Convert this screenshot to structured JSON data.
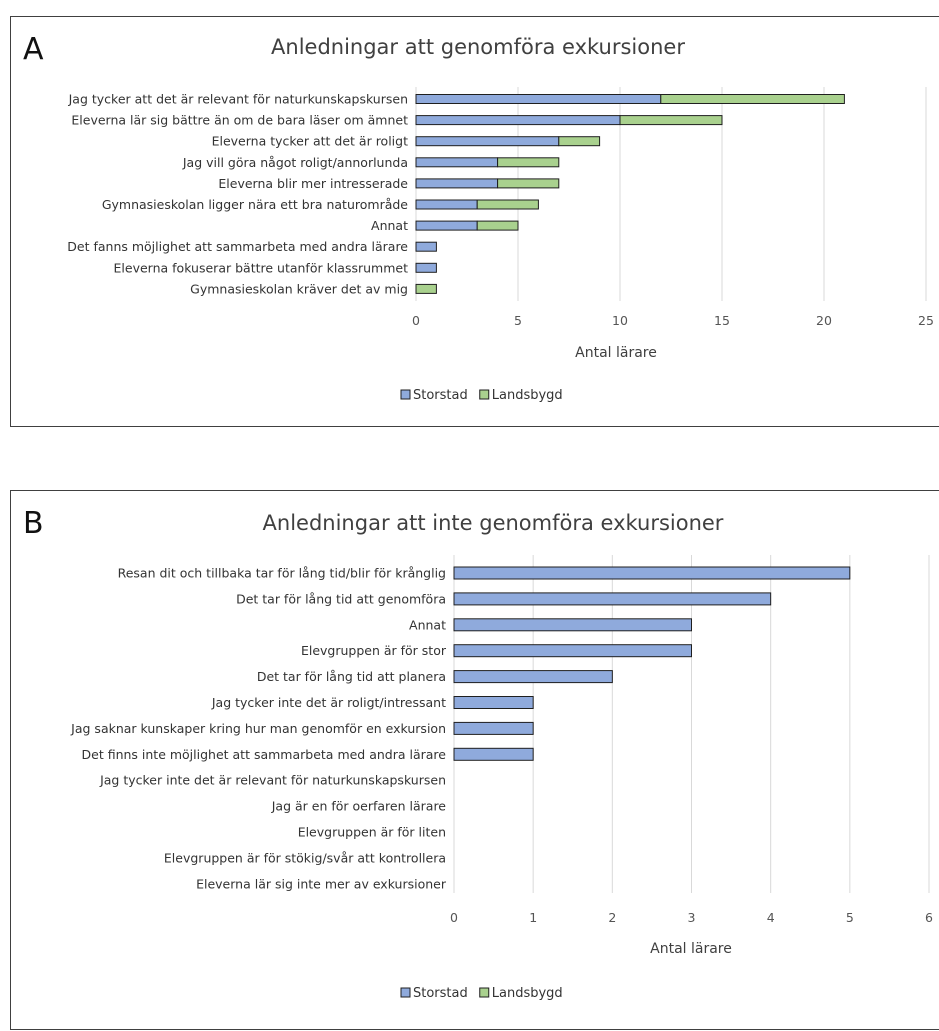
{
  "chart_data": [
    {
      "type": "bar",
      "orientation": "horizontal",
      "stacked": true,
      "panel_letter": "A",
      "title": "Anledningar att genomföra exkursioner",
      "xlabel": "Antal lärare",
      "ylabel": "",
      "xlim": [
        0,
        25
      ],
      "xticks": [
        0,
        5,
        10,
        15,
        20,
        25
      ],
      "grid": true,
      "legend_position": "bottom",
      "categories": [
        "Jag tycker att det är relevant för naturkunskapskursen",
        "Eleverna lär sig bättre än om de bara läser om ämnet",
        "Eleverna tycker att det är roligt",
        "Jag vill göra något roligt/annorlunda",
        "Eleverna blir mer intresserade",
        "Gymnasieskolan ligger nära ett bra naturområde",
        "Annat",
        "Det fanns möjlighet att sammarbeta med andra lärare",
        "Eleverna fokuserar bättre utanför klassrummet",
        "Gymnasieskolan kräver det av mig"
      ],
      "series": [
        {
          "name": "Storstad",
          "color": "#8faadc",
          "values": [
            12,
            10,
            7,
            4,
            4,
            3,
            3,
            1,
            1,
            0
          ]
        },
        {
          "name": "Landsbygd",
          "color": "#a9d18e",
          "values": [
            9,
            5,
            2,
            3,
            3,
            3,
            2,
            0,
            0,
            1
          ]
        }
      ]
    },
    {
      "type": "bar",
      "orientation": "horizontal",
      "stacked": true,
      "panel_letter": "B",
      "title": "Anledningar att inte genomföra exkursioner",
      "xlabel": "Antal lärare",
      "ylabel": "",
      "xlim": [
        0,
        6
      ],
      "xticks": [
        0,
        1,
        2,
        3,
        4,
        5,
        6
      ],
      "grid": true,
      "legend_position": "bottom",
      "categories": [
        "Resan dit och tillbaka tar för lång tid/blir för krånglig",
        "Det tar för lång tid att genomföra",
        "Annat",
        "Elevgruppen är för stor",
        "Det tar för lång tid att planera",
        "Jag tycker inte det är roligt/intressant",
        "Jag saknar kunskaper kring hur man genomför en exkursion",
        "Det finns inte möjlighet att sammarbeta med andra lärare",
        "Jag tycker inte det är relevant för naturkunskapskursen",
        "Jag är en för oerfaren lärare",
        "Elevgruppen är för liten",
        "Elevgruppen är för stökig/svår att kontrollera",
        "Eleverna lär sig inte mer av exkursioner"
      ],
      "series": [
        {
          "name": "Storstad",
          "color": "#8faadc",
          "values": [
            5,
            4,
            3,
            3,
            2,
            1,
            1,
            1,
            0,
            0,
            0,
            0,
            0
          ]
        },
        {
          "name": "Landsbygd",
          "color": "#a9d18e",
          "values": [
            0,
            0,
            0,
            0,
            0,
            0,
            0,
            0,
            0,
            0,
            0,
            0,
            0
          ]
        }
      ]
    }
  ]
}
